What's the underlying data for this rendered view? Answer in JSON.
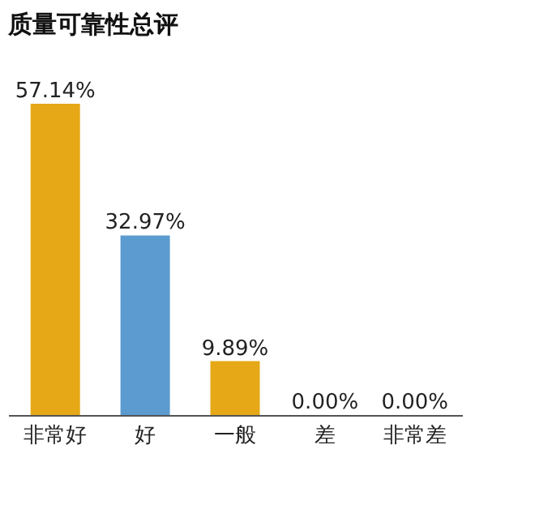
{
  "chart_data": {
    "type": "bar",
    "title": "质量可靠性总评",
    "categories": [
      "非常好",
      "好",
      "一般",
      "差",
      "非常差"
    ],
    "values": [
      57.14,
      32.97,
      9.89,
      0.0,
      0.0
    ],
    "colors": [
      "#e6a817",
      "#5b9bd0",
      "#e6a817",
      "#e6a817",
      "#e6a817"
    ],
    "value_labels": [
      "57.14%",
      "32.97%",
      "9.89%",
      "0.00%",
      "0.00%"
    ],
    "grid": false,
    "tick_labels": "x"
  }
}
